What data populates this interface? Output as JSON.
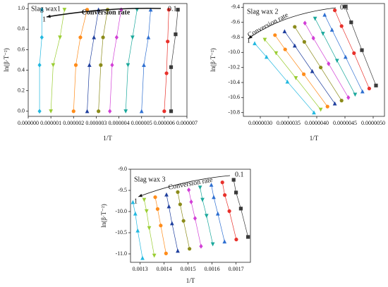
{
  "chart_data": [
    {
      "type": "scatter",
      "annotations": {
        "panel": "Slag wax1",
        "arrow": "Conversion rate",
        "start": "0.1",
        "end": "1"
      },
      "x_label": "1/T",
      "y_label": "ln(β·T⁻²)",
      "xlim": [
        0,
        7e-06
      ],
      "ylim": [
        -0.05,
        1.05
      ],
      "xticks": [
        {
          "value": 0,
          "label": "0.000000"
        },
        {
          "value": 1e-06,
          "label": "0.000001"
        },
        {
          "value": 2e-06,
          "label": "0.000002"
        },
        {
          "value": 3e-06,
          "label": "0.000003"
        },
        {
          "value": 4e-06,
          "label": "0.000004"
        },
        {
          "value": 5e-06,
          "label": "0.000005"
        },
        {
          "value": 6e-06,
          "label": "0.000006"
        },
        {
          "value": 7e-06,
          "label": "0.000007"
        }
      ],
      "yticks": [
        {
          "value": 0,
          "label": "0.0"
        },
        0.2,
        0.4,
        0.6,
        0.8,
        {
          "value": 1,
          "label": "1.0"
        }
      ],
      "series": [
        {
          "color": "#3a3a3a",
          "marker": "square",
          "x": [
            6.3e-06,
            6.3e-06,
            6.5e-06,
            6.6e-06
          ],
          "values": [
            0,
            0.43,
            0.75,
            0.99
          ]
        },
        {
          "color": "#e8312b",
          "marker": "circle",
          "x": [
            6e-06,
            6.1e-06,
            6.15e-06,
            6.2e-06
          ],
          "values": [
            0,
            0.37,
            0.68,
            0.99
          ]
        },
        {
          "color": "#2e6fd1",
          "marker": "triangle",
          "x": [
            5e-06,
            5.1e-06,
            5.3e-06,
            5.4e-06
          ],
          "values": [
            0,
            0.45,
            0.72,
            0.99
          ]
        },
        {
          "color": "#1aa89c",
          "marker": "tridown",
          "x": [
            4.3e-06,
            4.4e-06,
            4.6e-06,
            4.8e-06
          ],
          "values": [
            0,
            0.45,
            0.72,
            0.99
          ]
        },
        {
          "color": "#d23fd6",
          "marker": "diamond",
          "x": [
            3.6e-06,
            3.7e-06,
            3.9e-06,
            4.1e-06
          ],
          "values": [
            0,
            0.45,
            0.72,
            0.99
          ]
        },
        {
          "color": "#8b8b1a",
          "marker": "circle",
          "x": [
            3.1e-06,
            3.2e-06,
            3.3e-06,
            3.5e-06
          ],
          "values": [
            0,
            0.45,
            0.72,
            0.99
          ]
        },
        {
          "color": "#1f3f9e",
          "marker": "triangle",
          "x": [
            2.6e-06,
            2.7e-06,
            2.9e-06,
            3.1e-06
          ],
          "values": [
            0,
            0.45,
            0.72,
            0.99
          ]
        },
        {
          "color": "#ff8c1a",
          "marker": "circle",
          "x": [
            2e-06,
            2.1e-06,
            2.3e-06,
            2.6e-06
          ],
          "values": [
            0,
            0.45,
            0.72,
            0.99
          ]
        },
        {
          "color": "#9acd32",
          "marker": "tridown",
          "x": [
            1e-06,
            1.1e-06,
            1.4e-06,
            1.6e-06
          ],
          "values": [
            0,
            0.45,
            0.72,
            0.99
          ]
        },
        {
          "color": "#22b8e0",
          "marker": "diamond",
          "x": [
            5e-07,
            5e-07,
            6e-07,
            6e-07
          ],
          "values": [
            0,
            0.45,
            0.72,
            0.99
          ]
        }
      ]
    },
    {
      "type": "scatter",
      "annotations": {
        "panel": "Slag wax 2",
        "arrow": "Conversion rate",
        "start": "0.1",
        "end": "1"
      },
      "x_label": "1/T",
      "y_label": "ln(β·T⁻²)",
      "xlim": [
        2.7e-06,
        5.2e-06
      ],
      "ylim": [
        -10.85,
        -9.35
      ],
      "xticks": [
        {
          "value": 3e-06,
          "label": "0.0000030"
        },
        {
          "value": 3.5e-06,
          "label": "0.0000035"
        },
        {
          "value": 4e-06,
          "label": "0.0000040"
        },
        {
          "value": 4.5e-06,
          "label": "0.0000045"
        },
        {
          "value": 5e-06,
          "label": "0.0000050"
        }
      ],
      "yticks": [
        -9.4,
        -9.6,
        -9.8,
        {
          "value": -10,
          "label": "-10.0"
        },
        -10.2,
        -10.4,
        -10.6,
        -10.8
      ],
      "series": [
        {
          "color": "#3a3a3a",
          "marker": "square",
          "x": [
            4.5e-06,
            4.61e-06,
            4.8e-06,
            5.05e-06
          ],
          "values": [
            -9.39,
            -9.6,
            -9.97,
            -10.44
          ]
        },
        {
          "color": "#e8312b",
          "marker": "circle",
          "x": [
            4.32e-06,
            4.44e-06,
            4.66e-06,
            4.93e-06
          ],
          "values": [
            -9.44,
            -9.65,
            -10.01,
            -10.48
          ]
        },
        {
          "color": "#2e6fd1",
          "marker": "triangle",
          "x": [
            4.14e-06,
            4.27e-06,
            4.51e-06,
            4.81e-06
          ],
          "values": [
            -9.5,
            -9.7,
            -10.06,
            -10.52
          ]
        },
        {
          "color": "#1aa89c",
          "marker": "tridown",
          "x": [
            3.97e-06,
            4.11e-06,
            4.36e-06,
            4.68e-06
          ],
          "values": [
            -9.55,
            -9.75,
            -10.11,
            -10.56
          ]
        },
        {
          "color": "#d23fd6",
          "marker": "diamond",
          "x": [
            3.79e-06,
            3.94e-06,
            4.21e-06,
            4.56e-06
          ],
          "values": [
            -9.61,
            -9.81,
            -10.15,
            -10.6
          ]
        },
        {
          "color": "#8b8b1a",
          "marker": "circle",
          "x": [
            3.61e-06,
            3.78e-06,
            4.07e-06,
            4.44e-06
          ],
          "values": [
            -9.66,
            -9.86,
            -10.2,
            -10.64
          ]
        },
        {
          "color": "#1f3f9e",
          "marker": "triangle",
          "x": [
            3.43e-06,
            3.61e-06,
            3.92e-06,
            4.32e-06
          ],
          "values": [
            -9.72,
            -9.91,
            -10.25,
            -10.68
          ]
        },
        {
          "color": "#ff8c1a",
          "marker": "circle",
          "x": [
            3.26e-06,
            3.44e-06,
            3.77e-06,
            4.19e-06
          ],
          "values": [
            -9.77,
            -9.96,
            -10.29,
            -10.72
          ]
        },
        {
          "color": "#9acd32",
          "marker": "tridown",
          "x": [
            3.08e-06,
            3.28e-06,
            3.63e-06,
            4.07e-06
          ],
          "values": [
            -9.83,
            -10.01,
            -10.34,
            -10.76
          ]
        },
        {
          "color": "#22b8e0",
          "marker": "triangle",
          "x": [
            2.9e-06,
            3.11e-06,
            3.48e-06,
            3.95e-06
          ],
          "values": [
            -9.88,
            -10.06,
            -10.39,
            -10.8
          ]
        }
      ]
    },
    {
      "type": "scatter",
      "annotations": {
        "panel": "Slag wax 3",
        "arrow": "Conversion rate",
        "start": "0.1",
        "end": "1"
      },
      "x_label": "1/T",
      "y_label": "ln(β·T⁻²)",
      "xlim": [
        0.00126,
        0.00176
      ],
      "ylim": [
        -11.2,
        -9.0
      ],
      "xticks": [
        0.0013,
        0.0014,
        0.0015,
        0.0016,
        0.0017
      ],
      "yticks": [
        {
          "value": -9,
          "label": "-9.0"
        },
        -9.5,
        {
          "value": -10,
          "label": "-10.0"
        },
        -10.5,
        {
          "value": -11,
          "label": "-11.0"
        }
      ],
      "series": [
        {
          "color": "#3a3a3a",
          "marker": "square",
          "x": [
            0.00169,
            0.0017,
            0.00172,
            0.00175
          ],
          "values": [
            -9.25,
            -9.55,
            -9.93,
            -10.6
          ]
        },
        {
          "color": "#e8312b",
          "marker": "circle",
          "x": [
            0.001643,
            0.001653,
            0.001672,
            0.001701
          ],
          "values": [
            -9.31,
            -9.61,
            -9.99,
            -10.66
          ]
        },
        {
          "color": "#2e6fd1",
          "marker": "triangle",
          "x": [
            0.001597,
            0.001607,
            0.001624,
            0.001652
          ],
          "values": [
            -9.37,
            -9.66,
            -10.05,
            -10.71
          ]
        },
        {
          "color": "#1aa89c",
          "marker": "tridown",
          "x": [
            0.00155,
            0.00156,
            0.001577,
            0.001603
          ],
          "values": [
            -9.43,
            -9.72,
            -10.1,
            -10.77
          ]
        },
        {
          "color": "#d23fd6",
          "marker": "diamond",
          "x": [
            0.001503,
            0.001513,
            0.001529,
            0.001554
          ],
          "values": [
            -9.49,
            -9.77,
            -10.16,
            -10.82
          ]
        },
        {
          "color": "#8b8b1a",
          "marker": "circle",
          "x": [
            0.001457,
            0.001467,
            0.001481,
            0.001506
          ],
          "values": [
            -9.54,
            -9.83,
            -10.22,
            -10.88
          ]
        },
        {
          "color": "#1f3f9e",
          "marker": "triangle",
          "x": [
            0.00141,
            0.00142,
            0.001433,
            0.001457
          ],
          "values": [
            -9.6,
            -9.88,
            -10.28,
            -10.93
          ]
        },
        {
          "color": "#ff8c1a",
          "marker": "circle",
          "x": [
            0.001363,
            0.001373,
            0.001386,
            0.001408
          ],
          "values": [
            -9.66,
            -9.94,
            -10.33,
            -10.99
          ]
        },
        {
          "color": "#9acd32",
          "marker": "tridown",
          "x": [
            0.001317,
            0.001327,
            0.001338,
            0.001359
          ],
          "values": [
            -9.72,
            -9.99,
            -10.39,
            -11.04
          ]
        },
        {
          "color": "#22b8e0",
          "marker": "triangle",
          "x": [
            0.00127,
            0.00128,
            0.00129,
            0.00131
          ],
          "values": [
            -9.78,
            -10.05,
            -10.45,
            -11.1
          ]
        }
      ]
    }
  ]
}
